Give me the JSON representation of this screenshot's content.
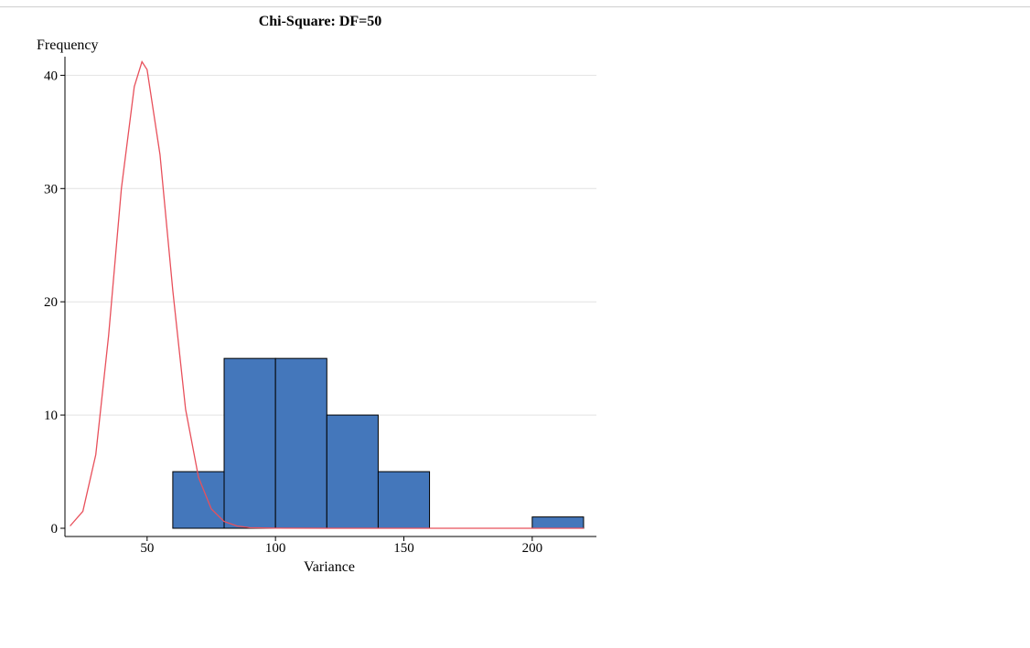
{
  "chart_data": {
    "type": "bar",
    "title": "Chi-Square: DF=50",
    "xlabel": "Variance",
    "ylabel": "Frequency",
    "xlim": [
      18,
      225
    ],
    "ylim": [
      0,
      41
    ],
    "x_ticks": [
      50,
      100,
      150,
      200
    ],
    "y_ticks": [
      0,
      10,
      20,
      30,
      40
    ],
    "gridlines": "horizontal",
    "bins": [
      {
        "x0": 60,
        "x1": 80,
        "count": 5
      },
      {
        "x0": 80,
        "x1": 100,
        "count": 15
      },
      {
        "x0": 100,
        "x1": 120,
        "count": 15
      },
      {
        "x0": 120,
        "x1": 140,
        "count": 10
      },
      {
        "x0": 140,
        "x1": 160,
        "count": 5
      },
      {
        "x0": 200,
        "x1": 220,
        "count": 1
      }
    ],
    "bar_color": "#4477bb",
    "density_curve": {
      "type": "chi-square density (scaled)",
      "df": 50,
      "color": "#e8505b",
      "points": [
        [
          20,
          0.2
        ],
        [
          25,
          1.5
        ],
        [
          30,
          6.5
        ],
        [
          35,
          17
        ],
        [
          40,
          30
        ],
        [
          45,
          39
        ],
        [
          48,
          41.2
        ],
        [
          50,
          40.5
        ],
        [
          55,
          33
        ],
        [
          60,
          21
        ],
        [
          65,
          10.5
        ],
        [
          70,
          4.5
        ],
        [
          75,
          1.7
        ],
        [
          80,
          0.6
        ],
        [
          85,
          0.2
        ],
        [
          90,
          0.05
        ],
        [
          100,
          0.01
        ],
        [
          120,
          0
        ],
        [
          150,
          0
        ],
        [
          200,
          0
        ],
        [
          220,
          0
        ]
      ]
    }
  }
}
